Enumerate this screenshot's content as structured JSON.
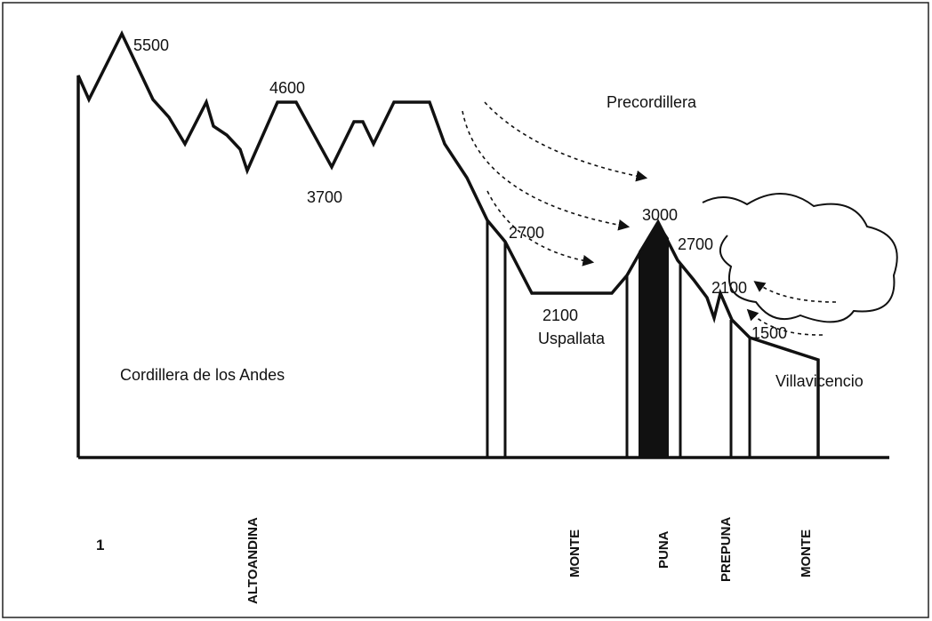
{
  "elevations": [
    "5500",
    "4600",
    "3700",
    "2700",
    "3000",
    "2700",
    "2100",
    "2100",
    "1500"
  ],
  "regions": [
    "Precordillera",
    "Uspallata",
    "Cordillera de los Andes",
    "Villavicencio"
  ],
  "zones": [
    "ALTOANDINA",
    "MONTE",
    "PUNA",
    "PREPUNA",
    "MONTE"
  ],
  "figure_number": "1"
}
